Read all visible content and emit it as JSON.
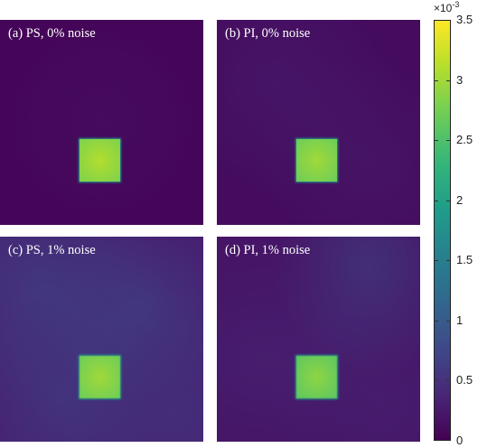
{
  "chart_data": [
    {
      "type": "heatmap",
      "panel_label": "(a) PS, 0% noise",
      "background_level": 5e-05,
      "square_level": 0.0031,
      "noise": "none"
    },
    {
      "type": "heatmap",
      "panel_label": "(b) PI, 0% noise",
      "background_level": 0.0001,
      "square_level": 0.003,
      "noise": "low"
    },
    {
      "type": "heatmap",
      "panel_label": "(c) PS, 1% noise",
      "background_level": 0.0003,
      "square_level": 0.003,
      "noise": "high"
    },
    {
      "type": "heatmap",
      "panel_label": "(d) PI, 1% noise",
      "background_level": 0.0002,
      "square_level": 0.0029,
      "noise": "medium"
    }
  ],
  "colorbar": {
    "exponent_base": "×10",
    "exponent_power": "-3",
    "min": 0,
    "max": 3.5,
    "ticks": [
      "0",
      "0.5",
      "1",
      "1.5",
      "2",
      "2.5",
      "3",
      "3.5"
    ],
    "colormap": "viridis"
  }
}
